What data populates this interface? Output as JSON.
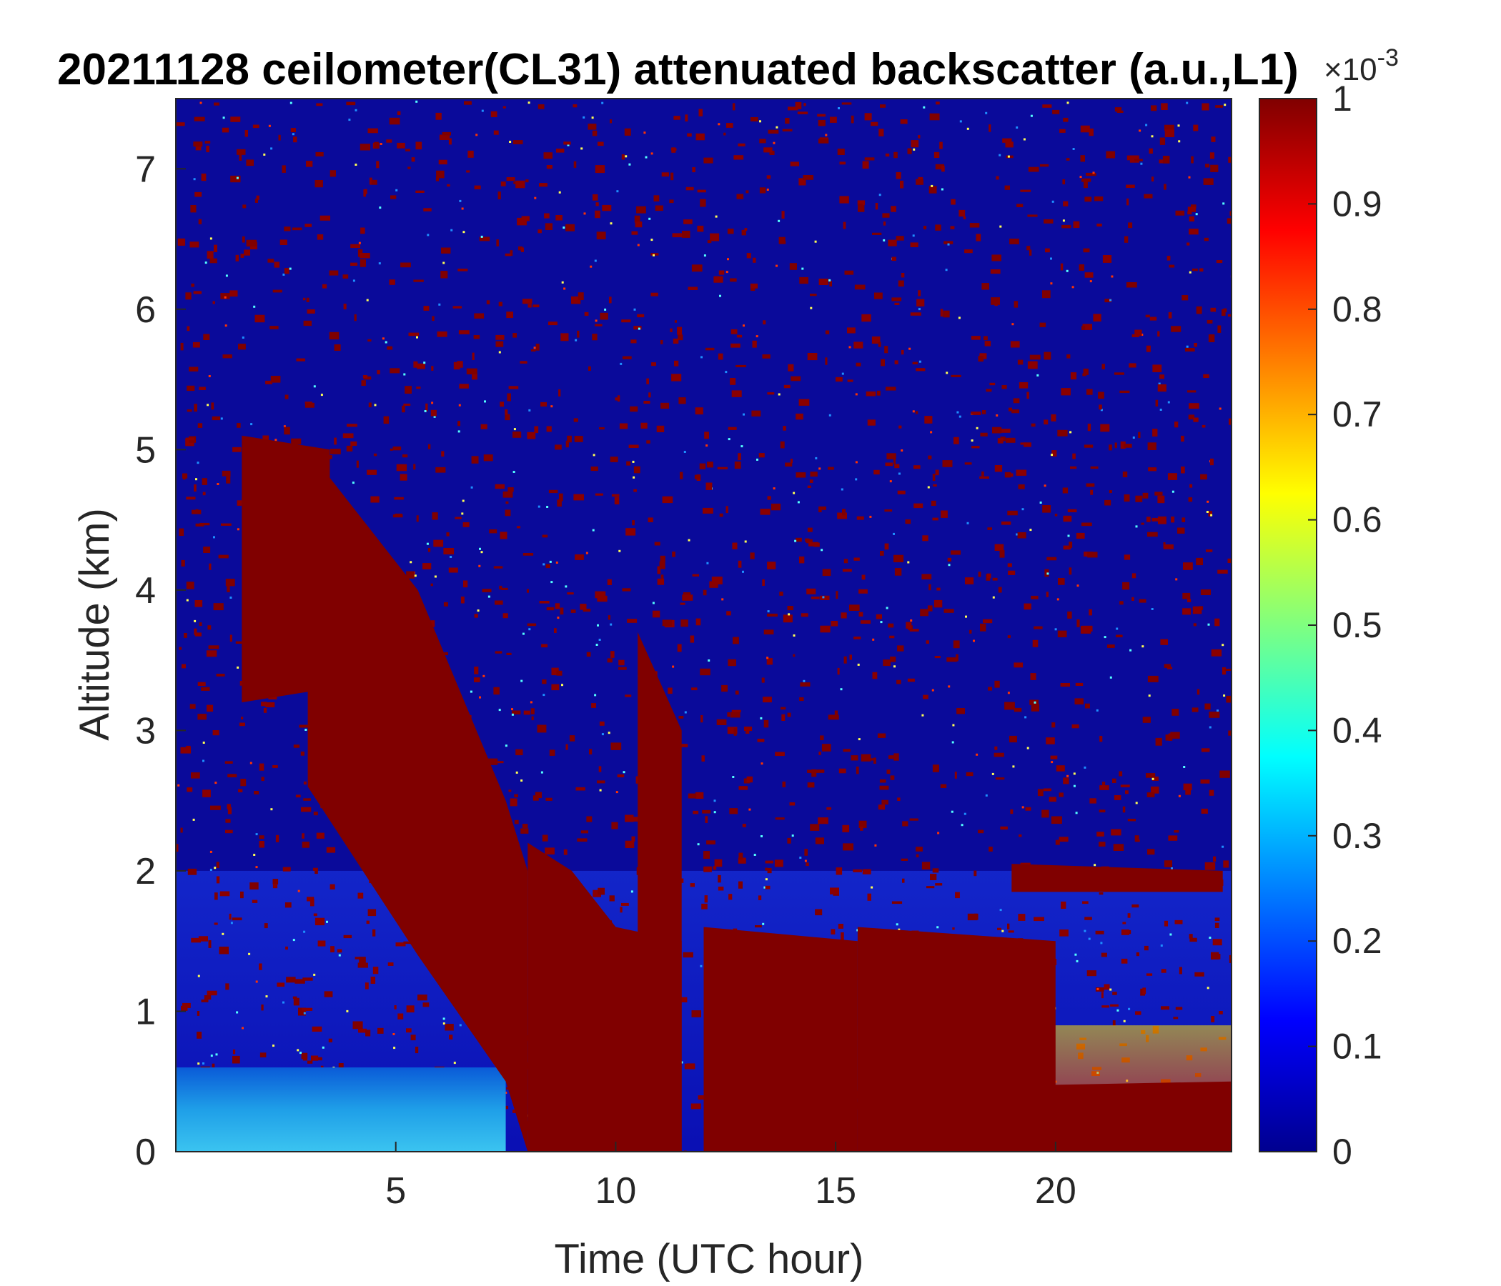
{
  "chart_data": {
    "type": "heatmap",
    "title": "20211128 ceilometer(CL31) attenuated backscatter (a.u.,L1)",
    "xlabel": "Time (UTC hour)",
    "ylabel": "Altitude (km)",
    "xlim": [
      0,
      24
    ],
    "ylim": [
      0,
      7.5
    ],
    "xticks": [
      5,
      10,
      15,
      20
    ],
    "yticks": [
      0,
      1,
      2,
      3,
      4,
      5,
      6,
      7
    ],
    "x_tick_labels": [
      "5",
      "10",
      "15",
      "20"
    ],
    "y_tick_labels": [
      "0",
      "1",
      "2",
      "3",
      "4",
      "5",
      "6",
      "7"
    ],
    "colormap": "jet",
    "colorbar": {
      "clim": [
        0,
        0.001
      ],
      "ticks": [
        0,
        0.1,
        0.2,
        0.3,
        0.4,
        0.5,
        0.6,
        0.7,
        0.8,
        0.9,
        1
      ],
      "tick_labels": [
        "0",
        "0.1",
        "0.2",
        "0.3",
        "0.4",
        "0.5",
        "0.6",
        "0.7",
        "0.8",
        "0.9",
        "1"
      ],
      "exponent_base": "×10",
      "exponent_power": "-3"
    },
    "cloud_layers": [
      {
        "x": [
          1.5,
          3.5
        ],
        "y_bottom": [
          3.2,
          3.3
        ],
        "y_top": [
          5.1,
          5.0
        ]
      },
      {
        "x": [
          3.0,
          5.5,
          7.5,
          8.0
        ],
        "y_bottom": [
          2.6,
          1.4,
          0.5,
          0.0
        ],
        "y_top": [
          5.0,
          4.0,
          2.5,
          2.0
        ]
      },
      {
        "x": [
          8.0,
          9.0,
          10.0,
          11.5
        ],
        "y_bottom": [
          0.0,
          0.0,
          0.0,
          0.0
        ],
        "y_top": [
          2.2,
          2.0,
          1.6,
          1.5
        ]
      },
      {
        "x": [
          10.5,
          11.5
        ],
        "y_bottom": [
          0.0,
          0.0
        ],
        "y_top": [
          3.7,
          3.0
        ]
      },
      {
        "x": [
          12.0,
          15.5
        ],
        "y_bottom": [
          0.0,
          0.0
        ],
        "y_top": [
          1.6,
          1.5
        ]
      },
      {
        "x": [
          15.5,
          20.0
        ],
        "y_bottom": [
          0.0,
          0.0
        ],
        "y_top": [
          1.6,
          1.5
        ]
      },
      {
        "x": [
          19.0,
          23.8
        ],
        "y_bottom": [
          1.85,
          1.85
        ],
        "y_top": [
          2.05,
          2.0
        ]
      },
      {
        "x": [
          15.5,
          24.0
        ],
        "y_bottom": [
          0.0,
          0.0
        ],
        "y_top": [
          0.45,
          0.5
        ]
      }
    ],
    "boundary_layer": {
      "x": [
        0,
        7.5
      ],
      "y_top": [
        0.6,
        0.6
      ],
      "value_range": [
        0.0002,
        0.0004
      ]
    },
    "grid": false
  }
}
